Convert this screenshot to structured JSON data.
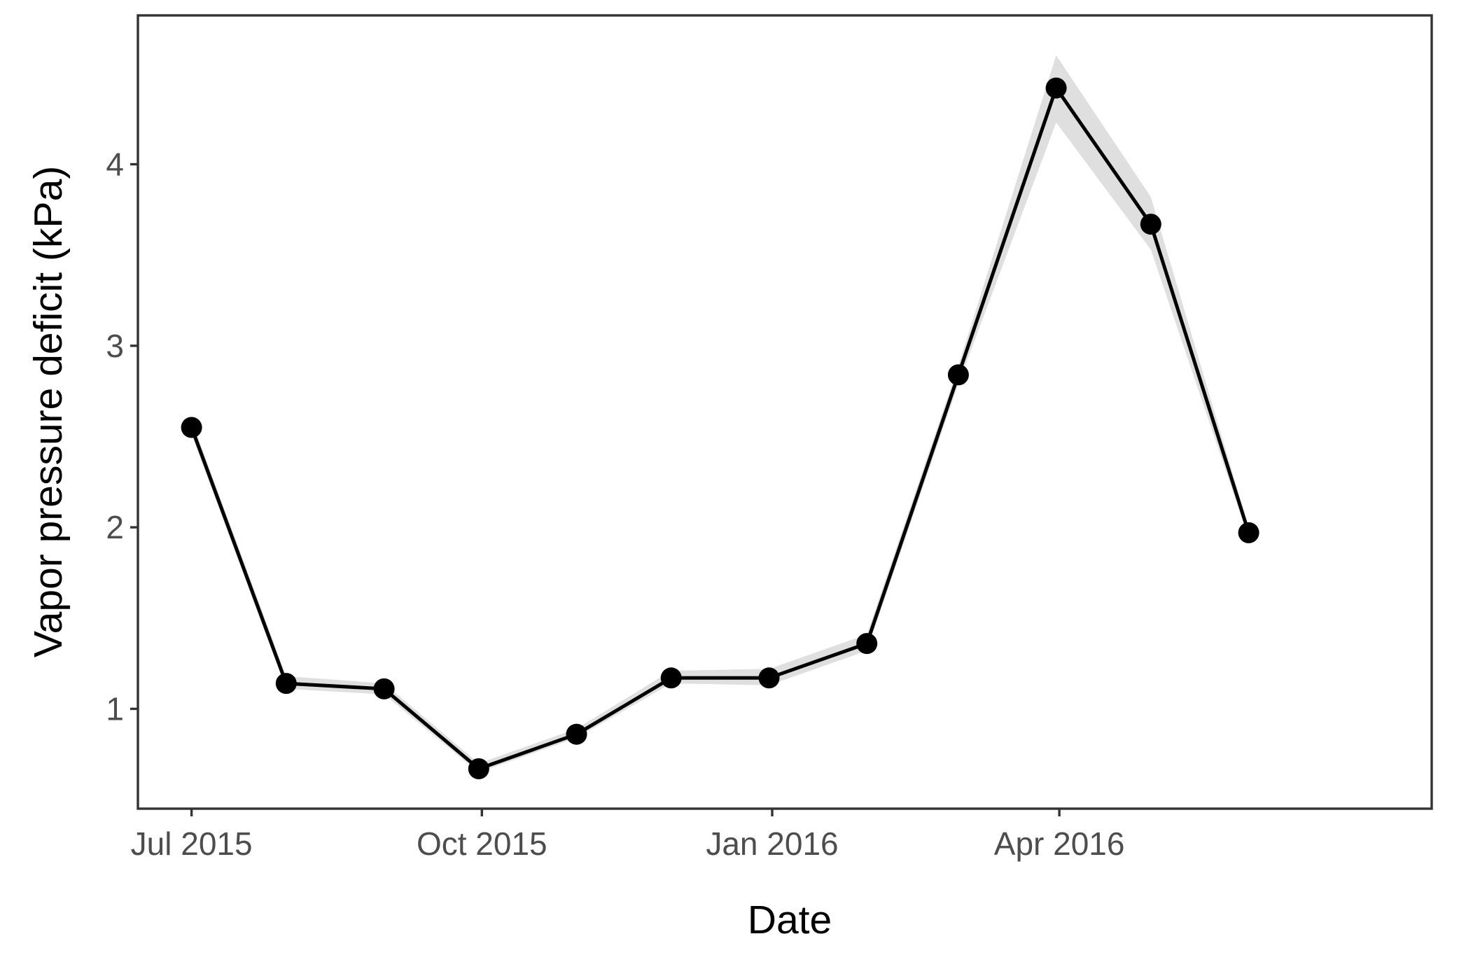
{
  "chart_data": {
    "type": "line",
    "xlabel": "Date",
    "ylabel": "Vapor pressure deficit (kPa)",
    "x_ticks": [
      {
        "date": "2015-07-01",
        "label": "Jul 2015"
      },
      {
        "date": "2015-10-01",
        "label": "Oct 2015"
      },
      {
        "date": "2016-01-01",
        "label": "Jan 2016"
      },
      {
        "date": "2016-04-01",
        "label": "Apr 2016"
      }
    ],
    "y_ticks": [
      1,
      2,
      3,
      4
    ],
    "xlim": [
      "2015-06-14",
      "2016-07-28"
    ],
    "ylim": [
      0.45,
      4.82
    ],
    "grid": false,
    "series": [
      {
        "x": [
          "2015-07-01",
          "2015-07-31",
          "2015-08-31",
          "2015-09-30",
          "2015-10-31",
          "2015-11-30",
          "2015-12-31",
          "2016-01-31",
          "2016-02-29",
          "2016-03-31",
          "2016-04-30",
          "2016-05-31"
        ],
        "y": [
          2.55,
          1.14,
          1.11,
          0.67,
          0.86,
          1.17,
          1.17,
          1.36,
          2.84,
          4.42,
          3.67,
          1.97
        ],
        "y_lower": [
          2.51,
          1.11,
          1.08,
          0.65,
          0.84,
          1.14,
          1.13,
          1.32,
          2.79,
          4.23,
          3.53,
          1.94
        ],
        "y_upper": [
          2.59,
          1.18,
          1.14,
          0.7,
          0.89,
          1.21,
          1.22,
          1.41,
          2.89,
          4.6,
          3.82,
          2.0
        ]
      }
    ],
    "colors": {
      "line": "#000000",
      "ribbon": "#d9d9d9",
      "tick_text": "#4d4d4d",
      "frame": "#333333"
    }
  }
}
